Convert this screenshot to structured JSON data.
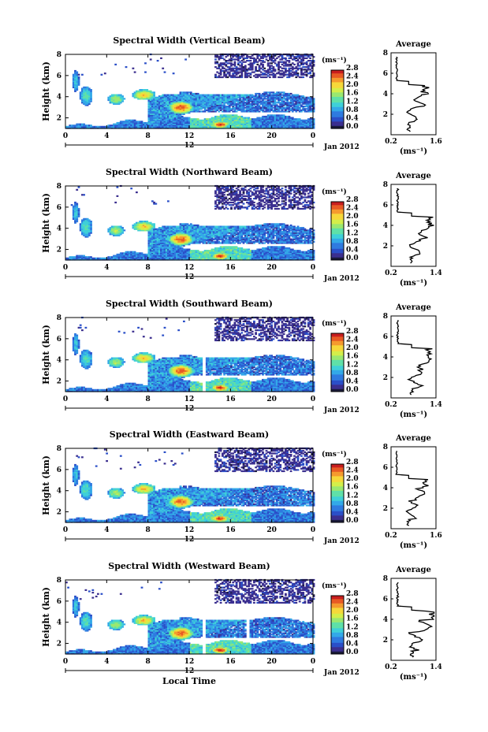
{
  "chart_data": [
    {
      "type": "heatmap",
      "title": "Spectral Width (Vertical Beam)",
      "ylabel": "Height (km)",
      "xlim": [
        0,
        24
      ],
      "ylim": [
        1,
        8
      ],
      "xticks": [
        "0",
        "4",
        "8",
        "12",
        "16",
        "20",
        "0"
      ],
      "yticks": [
        "2",
        "4",
        "6",
        "8"
      ],
      "date_center": "12",
      "date_label": "Jan 2012",
      "colorbar_unit": "(ms⁻¹)",
      "colorbar_ticks": [
        "0.0",
        "0.4",
        "0.8",
        "1.2",
        "1.6",
        "2.0",
        "2.4",
        "2.8"
      ],
      "average": {
        "title": "Average",
        "xlim": [
          0.2,
          1.6
        ],
        "xticks": [
          "0.2",
          "1.6"
        ],
        "ylim": [
          0,
          8
        ],
        "yticks": [
          "2",
          "4",
          "6",
          "8"
        ],
        "unit": "(ms⁻¹)"
      }
    },
    {
      "type": "heatmap",
      "title": "Spectral Width (Northward Beam)",
      "ylabel": "Height (km)",
      "xlim": [
        0,
        24
      ],
      "ylim": [
        1,
        8
      ],
      "xticks": [
        "0",
        "4",
        "8",
        "12",
        "16",
        "20",
        "0"
      ],
      "yticks": [
        "2",
        "4",
        "6",
        "8"
      ],
      "date_center": "12",
      "date_label": "Jan 2012",
      "colorbar_unit": "(ms⁻¹)",
      "colorbar_ticks": [
        "0.0",
        "0.4",
        "0.8",
        "1.2",
        "1.6",
        "2.0",
        "2.4",
        "2.8"
      ],
      "average": {
        "title": "Average",
        "xlim": [
          0.2,
          1.4
        ],
        "xticks": [
          "0.2",
          "1.4"
        ],
        "ylim": [
          0,
          8
        ],
        "yticks": [
          "2",
          "4",
          "6",
          "8"
        ],
        "unit": "(ms⁻¹)"
      }
    },
    {
      "type": "heatmap",
      "title": "Spectral Width (Southward Beam)",
      "ylabel": "Height (km)",
      "xlim": [
        0,
        24
      ],
      "ylim": [
        1,
        8
      ],
      "xticks": [
        "0",
        "4",
        "8",
        "12",
        "16",
        "20",
        "0"
      ],
      "yticks": [
        "2",
        "4",
        "6",
        "8"
      ],
      "date_center": "12",
      "date_label": "Jan 2012",
      "colorbar_unit": "(ms⁻¹)",
      "colorbar_ticks": [
        "0.0",
        "0.4",
        "0.8",
        "1.2",
        "1.6",
        "2.0",
        "2.4",
        "2.8"
      ],
      "average": {
        "title": "Average",
        "xlim": [
          0.2,
          1.4
        ],
        "xticks": [
          "0.2",
          "1.4"
        ],
        "ylim": [
          0,
          8
        ],
        "yticks": [
          "2",
          "4",
          "6",
          "8"
        ],
        "unit": "(ms⁻¹)"
      }
    },
    {
      "type": "heatmap",
      "title": "Spectral Width (Eastward Beam)",
      "ylabel": "Height (km)",
      "xlim": [
        0,
        24
      ],
      "ylim": [
        1,
        8
      ],
      "xticks": [
        "0",
        "4",
        "8",
        "12",
        "16",
        "20",
        "0"
      ],
      "yticks": [
        "2",
        "4",
        "6",
        "8"
      ],
      "date_center": "12",
      "date_label": "Jan 2012",
      "colorbar_unit": "(ms⁻¹)",
      "colorbar_ticks": [
        "0.0",
        "0.4",
        "0.8",
        "1.2",
        "1.6",
        "2.0",
        "2.4",
        "2.8"
      ],
      "average": {
        "title": "Average",
        "xlim": [
          0.2,
          1.6
        ],
        "xticks": [
          "0.2",
          "1.6"
        ],
        "ylim": [
          0,
          8
        ],
        "yticks": [
          "2",
          "4",
          "6",
          "8"
        ],
        "unit": "(ms⁻¹)"
      }
    },
    {
      "type": "heatmap",
      "title": "Spectral Width (Westward Beam)",
      "ylabel": "Height (km)",
      "xlabel": "Local Time",
      "xlim": [
        0,
        24
      ],
      "ylim": [
        1,
        8
      ],
      "xticks": [
        "0",
        "4",
        "8",
        "12",
        "16",
        "20",
        "0"
      ],
      "yticks": [
        "2",
        "4",
        "6",
        "8"
      ],
      "date_center": "12",
      "date_label": "Jan 2012",
      "colorbar_unit": "(ms⁻¹)",
      "colorbar_ticks": [
        "0.0",
        "0.4",
        "0.8",
        "1.2",
        "1.6",
        "2.0",
        "2.4",
        "2.8"
      ],
      "average": {
        "title": "Average",
        "xlim": [
          0.2,
          1.4
        ],
        "xticks": [
          "0.2",
          "1.4"
        ],
        "ylim": [
          0,
          8
        ],
        "yticks": [
          "2",
          "4",
          "6",
          "8"
        ],
        "unit": "(ms⁻¹)"
      }
    }
  ],
  "colors": {
    "colormap": [
      "#1a1a3a",
      "#3b2f8f",
      "#2b4fc8",
      "#2f7be0",
      "#33a9e8",
      "#3fd0d8",
      "#5fe0a8",
      "#9ae870",
      "#d4ee4a",
      "#f6d83a",
      "#f59a2e",
      "#e85a24",
      "#c81e1e"
    ]
  }
}
